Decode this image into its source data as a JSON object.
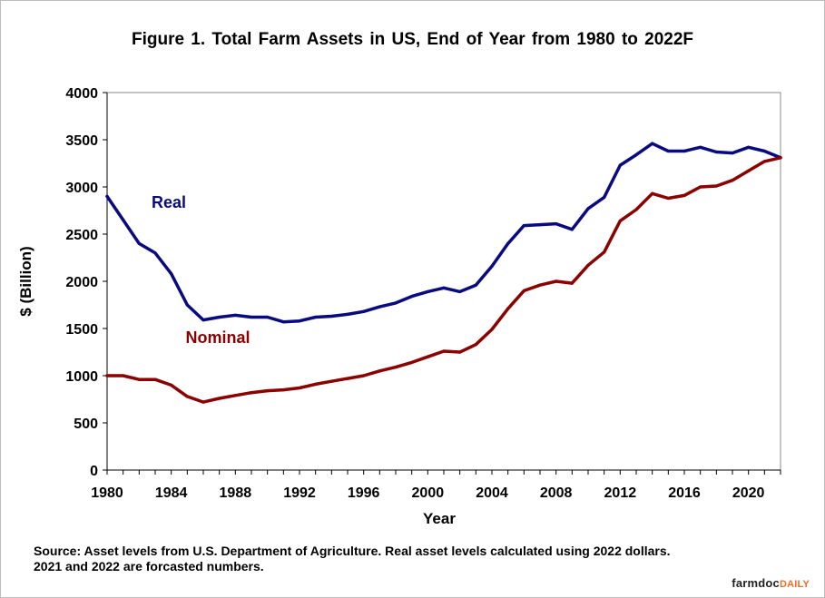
{
  "chart_data": {
    "type": "line",
    "title": "Figure  1. Total Farm Assets in US, End of Year from 1980 to 2022F",
    "xlabel": "Year",
    "ylabel": "$ (Billion)",
    "xlim": [
      1980,
      2022
    ],
    "ylim": [
      0,
      4000
    ],
    "yticks": [
      "0",
      "500",
      "1000",
      "1500",
      "2000",
      "2500",
      "3000",
      "3500",
      "4000"
    ],
    "xticks": [
      "1980",
      "1984",
      "1988",
      "1992",
      "1996",
      "2000",
      "2004",
      "2008",
      "2012",
      "2016",
      "2020"
    ],
    "grid": false,
    "x": [
      1980,
      1981,
      1982,
      1983,
      1984,
      1985,
      1986,
      1987,
      1988,
      1989,
      1990,
      1991,
      1992,
      1993,
      1994,
      1995,
      1996,
      1997,
      1998,
      1999,
      2000,
      2001,
      2002,
      2003,
      2004,
      2005,
      2006,
      2007,
      2008,
      2009,
      2010,
      2011,
      2012,
      2013,
      2014,
      2015,
      2016,
      2017,
      2018,
      2019,
      2020,
      2021,
      2022
    ],
    "series": [
      {
        "name": "Real",
        "color": "#0a0a80",
        "values": [
          2900,
          2650,
          2400,
          2300,
          2080,
          1750,
          1590,
          1620,
          1640,
          1620,
          1620,
          1570,
          1580,
          1620,
          1630,
          1650,
          1680,
          1730,
          1770,
          1840,
          1890,
          1930,
          1890,
          1960,
          2160,
          2400,
          2590,
          2600,
          2610,
          2550,
          2770,
          2890,
          3230,
          3340,
          3460,
          3380,
          3380,
          3420,
          3370,
          3360,
          3420,
          3380,
          3310
        ]
      },
      {
        "name": "Nominal",
        "color": "#8b0000",
        "values": [
          1000,
          1000,
          960,
          960,
          900,
          780,
          720,
          760,
          790,
          820,
          840,
          850,
          870,
          910,
          940,
          970,
          1000,
          1050,
          1090,
          1140,
          1200,
          1260,
          1250,
          1330,
          1490,
          1710,
          1900,
          1960,
          2000,
          1980,
          2170,
          2310,
          2640,
          2760,
          2930,
          2880,
          2910,
          3000,
          3010,
          3070,
          3170,
          3270,
          3310
        ]
      }
    ]
  },
  "source_note": {
    "line1": "Source: Asset levels from U.S. Department of Agriculture.  Real asset levels calculated using 2022 dollars.",
    "line2": "2021 and 2022 are forcasted numbers."
  },
  "brand": {
    "part1": "farmdoc",
    "part2": "DAILY"
  }
}
